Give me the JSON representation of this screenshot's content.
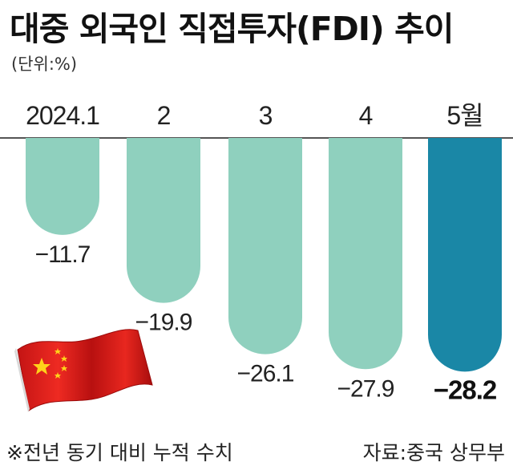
{
  "header": {
    "title": "대중 외국인 직접투자(FDI) 추이",
    "unit": "(단위:%)"
  },
  "footer": {
    "note": "※전년 동기 대비 누적 수치",
    "source": "자료:중국 상무부"
  },
  "colors": {
    "bar": "#8fd0be",
    "highlight_bar": "#1a87a6",
    "axis": "#555555"
  },
  "icons": [
    "china-flag-icon"
  ],
  "chart_data": {
    "type": "bar",
    "categories": [
      "2024.1",
      "2",
      "3",
      "4",
      "5월"
    ],
    "values": [
      -11.7,
      -19.9,
      -26.1,
      -27.9,
      -28.2
    ],
    "value_labels": [
      "−11.7",
      "−19.9",
      "−26.1",
      "−27.9",
      "−28.2"
    ],
    "highlight_index": 4,
    "ylim": [
      -30,
      0
    ],
    "grid": false,
    "legend": "none",
    "title": "대중 외국인 직접투자(FDI) 추이",
    "xlabel": "",
    "ylabel": ""
  }
}
